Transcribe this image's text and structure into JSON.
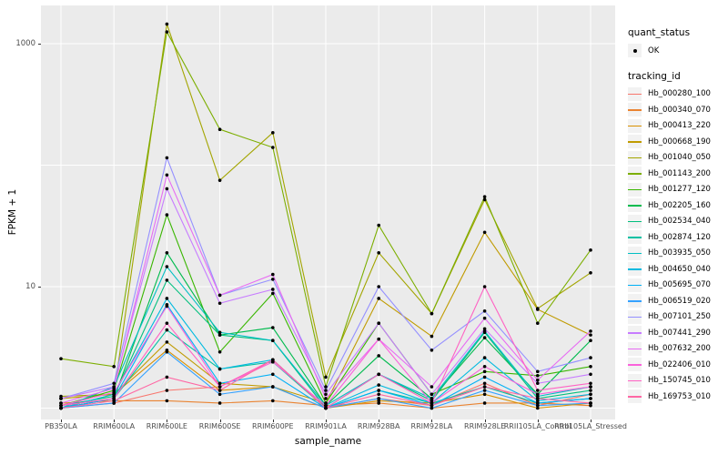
{
  "legend": {
    "quant_status_title": "quant_status",
    "quant_status_value": "OK",
    "tracking_id_title": "tracking_id"
  },
  "chart_data": {
    "type": "line",
    "title": "",
    "xlabel": "sample_name",
    "ylabel": "FPKM + 1",
    "y_scale": "log10",
    "ylim": [
      0.8,
      2100
    ],
    "grid": "major-white-on-grey",
    "legend_position": "right",
    "point_color": "#000000",
    "panel_color": "#EBEBEB",
    "y_ticks": [
      {
        "value": 10,
        "label": "10"
      },
      {
        "value": 1000,
        "label": "1000"
      }
    ],
    "gridline_values": [
      1,
      10,
      100,
      1000
    ],
    "x": [
      "PB350LA",
      "RRIM600LA",
      "RRIM600LE",
      "RRIM600SE",
      "RRIM600PE",
      "RRIM901LA",
      "RRIM928BA",
      "RRIM928LA",
      "RRIM928LE",
      "RRII105LA_Control",
      "RRII105LA_Stressed"
    ],
    "series": [
      {
        "name": "Hb_000280_100",
        "color": "#F8766D",
        "values": [
          1.0,
          1.1,
          1.4,
          1.5,
          2.5,
          1.0,
          1.2,
          1.05,
          1.6,
          1.05,
          1.3
        ]
      },
      {
        "name": "Hb_000340_070",
        "color": "#EA8331",
        "values": [
          1.1,
          1.15,
          1.15,
          1.1,
          1.15,
          1.05,
          1.1,
          1.0,
          1.1,
          1.1,
          1.05
        ]
      },
      {
        "name": "Hb_000413_220",
        "color": "#D89000",
        "values": [
          1.0,
          1.3,
          3.0,
          1.4,
          1.5,
          1.0,
          1.15,
          1.1,
          1.3,
          1.0,
          1.1
        ]
      },
      {
        "name": "Hb_000668_190",
        "color": "#C09B00",
        "values": [
          1.2,
          1.3,
          3.5,
          1.6,
          1.5,
          1.1,
          8.0,
          3.9,
          28,
          6.5,
          4.0
        ]
      },
      {
        "name": "Hb_001040_050",
        "color": "#A3A500",
        "values": [
          1.25,
          1.3,
          1450,
          75,
          185,
          1.8,
          19,
          6.0,
          52,
          6.6,
          13
        ]
      },
      {
        "name": "Hb_001143_200",
        "color": "#7CAE00",
        "values": [
          2.55,
          2.2,
          1250,
          197,
          140,
          1.5,
          32,
          6.0,
          55,
          5.0,
          20
        ]
      },
      {
        "name": "Hb_001277_120",
        "color": "#39B600",
        "values": [
          1.05,
          1.4,
          39,
          2.9,
          8.8,
          1.1,
          5.0,
          1.3,
          2.0,
          1.85,
          2.2
        ]
      },
      {
        "name": "Hb_002205_160",
        "color": "#00BB4E",
        "values": [
          1.0,
          1.2,
          19,
          4.0,
          4.6,
          1.05,
          2.7,
          1.2,
          3.8,
          1.3,
          3.6
        ]
      },
      {
        "name": "Hb_002534_040",
        "color": "#00BF7D",
        "values": [
          1.05,
          1.25,
          11.3,
          4.0,
          3.6,
          1.0,
          1.9,
          1.15,
          4.2,
          1.2,
          1.4
        ]
      },
      {
        "name": "Hb_002874_120",
        "color": "#00C1A3",
        "values": [
          1.0,
          1.2,
          4.4,
          2.1,
          2.4,
          1.0,
          1.4,
          1.1,
          1.5,
          1.1,
          1.2
        ]
      },
      {
        "name": "Hb_003935_050",
        "color": "#00BFC4",
        "values": [
          1.0,
          1.5,
          14.6,
          4.2,
          3.6,
          1.05,
          1.9,
          1.2,
          4.3,
          1.25,
          1.5
        ]
      },
      {
        "name": "Hb_004650_040",
        "color": "#00BAE0",
        "values": [
          1.0,
          1.3,
          8.0,
          2.1,
          2.5,
          1.0,
          1.55,
          1.1,
          2.6,
          1.15,
          1.3
        ]
      },
      {
        "name": "Hb_005695_070",
        "color": "#00B0F6",
        "values": [
          1.0,
          1.2,
          7.1,
          1.6,
          1.9,
          1.0,
          1.4,
          1.05,
          1.8,
          1.1,
          1.2
        ]
      },
      {
        "name": "Hb_006519_020",
        "color": "#35A2FF",
        "values": [
          1.0,
          1.1,
          2.9,
          1.3,
          1.5,
          1.0,
          1.2,
          1.0,
          1.4,
          1.05,
          1.1
        ]
      },
      {
        "name": "Hb_007101_250",
        "color": "#9590FF",
        "values": [
          1.2,
          1.6,
          115,
          8.5,
          11.5,
          1.4,
          10,
          3.0,
          6.3,
          2.0,
          2.6
        ]
      },
      {
        "name": "Hb_007441_290",
        "color": "#C77CFF",
        "values": [
          1.2,
          1.5,
          64,
          7.3,
          9.5,
          1.3,
          5.0,
          1.3,
          4.5,
          1.6,
          1.9
        ]
      },
      {
        "name": "Hb_007632_200",
        "color": "#E76BF3",
        "values": [
          1.1,
          1.45,
          83,
          8.5,
          12.6,
          1.2,
          3.7,
          1.5,
          5.5,
          1.7,
          4.3
        ]
      },
      {
        "name": "Hb_022406_010",
        "color": "#FA62DB",
        "values": [
          1.05,
          1.35,
          6.9,
          1.5,
          2.4,
          1.05,
          3.7,
          1.1,
          2.2,
          1.3,
          1.5
        ]
      },
      {
        "name": "Hb_150745_010",
        "color": "#FF61C3",
        "values": [
          1.05,
          1.2,
          5.0,
          1.5,
          2.5,
          1.0,
          1.9,
          1.1,
          10,
          1.4,
          1.6
        ]
      },
      {
        "name": "Hb_169753_010",
        "color": "#FF67A4",
        "values": [
          1.0,
          1.15,
          1.8,
          1.4,
          2.5,
          1.0,
          1.3,
          1.05,
          1.5,
          1.2,
          1.1
        ]
      }
    ]
  }
}
